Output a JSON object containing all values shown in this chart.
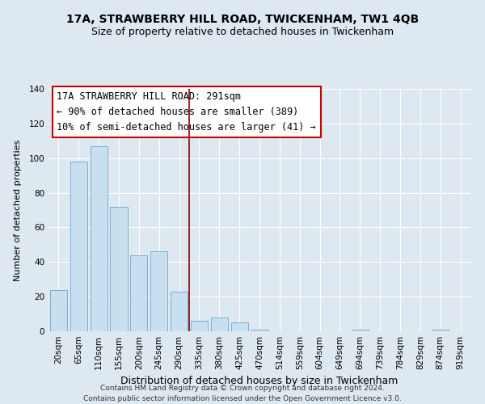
{
  "title1": "17A, STRAWBERRY HILL ROAD, TWICKENHAM, TW1 4QB",
  "title2": "Size of property relative to detached houses in Twickenham",
  "xlabel": "Distribution of detached houses by size in Twickenham",
  "ylabel": "Number of detached properties",
  "bar_color": "#c8dff0",
  "bar_edge_color": "#7aafd4",
  "background_color": "#dde8f0",
  "plot_bg_color": "#dde8f0",
  "categories": [
    "20sqm",
    "65sqm",
    "110sqm",
    "155sqm",
    "200sqm",
    "245sqm",
    "290sqm",
    "335sqm",
    "380sqm",
    "425sqm",
    "470sqm",
    "514sqm",
    "559sqm",
    "604sqm",
    "649sqm",
    "694sqm",
    "739sqm",
    "784sqm",
    "829sqm",
    "874sqm",
    "919sqm"
  ],
  "values": [
    24,
    98,
    107,
    72,
    44,
    46,
    23,
    6,
    8,
    5,
    1,
    0,
    0,
    0,
    0,
    1,
    0,
    0,
    0,
    1,
    0
  ],
  "ylim": [
    0,
    140
  ],
  "yticks": [
    0,
    20,
    40,
    60,
    80,
    100,
    120,
    140
  ],
  "property_line_idx": 6,
  "property_line_label": "17A STRAWBERRY HILL ROAD: 291sqm",
  "annotation_line1": "← 90% of detached houses are smaller (389)",
  "annotation_line2": "10% of semi-detached houses are larger (41) →",
  "footer_line1": "Contains HM Land Registry data © Crown copyright and database right 2024.",
  "footer_line2": "Contains public sector information licensed under the Open Government Licence v3.0.",
  "grid_color": "#ffffff",
  "title1_fontsize": 10,
  "title2_fontsize": 9,
  "xlabel_fontsize": 9,
  "ylabel_fontsize": 8,
  "tick_fontsize": 7.5,
  "annotation_fontsize": 8.5,
  "footer_fontsize": 6.5
}
